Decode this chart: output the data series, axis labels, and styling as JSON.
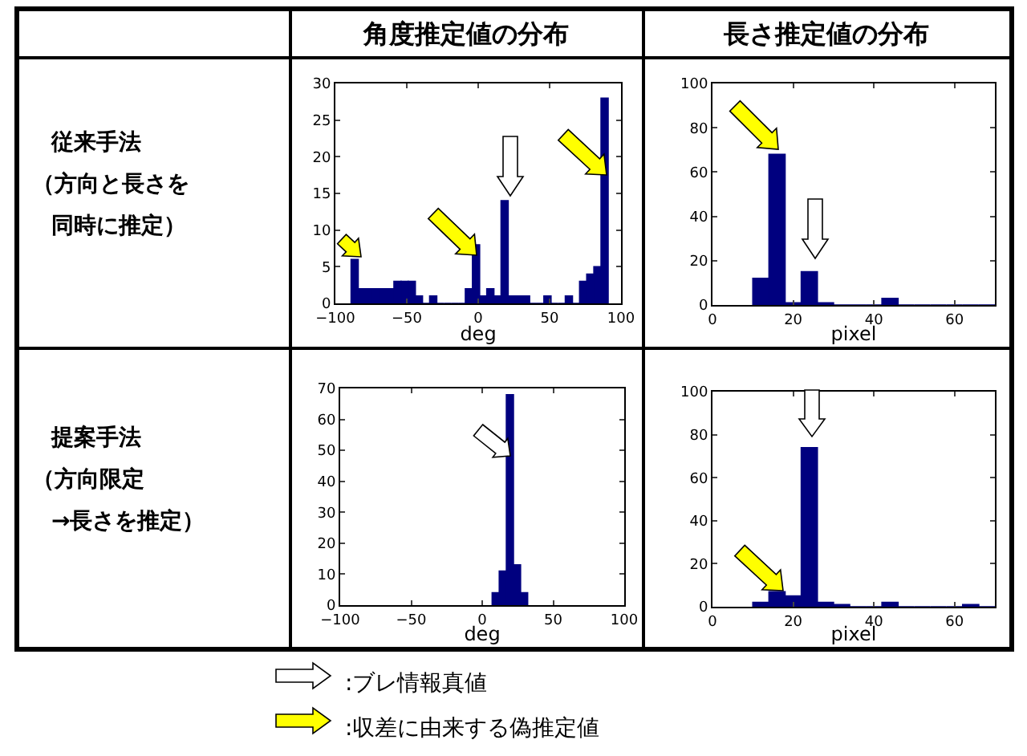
{
  "chart_data": [
    {
      "type": "histogram",
      "title": "角度推定値の分布",
      "xlabel": "deg",
      "color": "#00007f",
      "bins": [
        -89,
        -84,
        -79,
        -74,
        -69,
        -64,
        -59,
        -54,
        -49,
        -44,
        -39,
        -34,
        -29,
        -24,
        -19,
        -14,
        -9,
        -4,
        1,
        6,
        11,
        16,
        21,
        26,
        31,
        36,
        41,
        46,
        51,
        56,
        61,
        66,
        71,
        76,
        81,
        86,
        91
      ],
      "values": [
        6,
        2,
        2,
        2,
        2,
        2,
        3,
        3,
        3,
        1,
        0,
        1,
        0,
        0,
        0,
        0,
        2,
        8,
        1,
        2,
        1,
        14,
        1,
        1,
        1,
        0,
        0,
        1,
        0,
        0,
        1,
        0,
        3,
        4,
        5,
        28
      ],
      "xlim": [
        -100,
        100
      ],
      "xticks": [
        -100,
        -50,
        0,
        50,
        100
      ],
      "ylim": [
        0,
        30
      ],
      "yticks": [
        0,
        5,
        10,
        15,
        20,
        25,
        30
      ]
    },
    {
      "type": "histogram",
      "title": "長さ推定値の分布",
      "xlabel": "pixel",
      "color": "#00007f",
      "bins": [
        10,
        14,
        18,
        22,
        26,
        30,
        34,
        38,
        42,
        46,
        50,
        54,
        58,
        62,
        66,
        70
      ],
      "values": [
        12,
        68,
        1,
        15,
        1,
        0,
        0,
        0,
        3,
        0,
        0,
        0,
        0,
        0,
        0
      ],
      "xlim": [
        0,
        70
      ],
      "xticks": [
        0,
        20,
        40,
        60
      ],
      "ylim": [
        0,
        100
      ],
      "yticks": [
        0,
        20,
        40,
        60,
        80,
        100
      ]
    },
    {
      "type": "histogram",
      "xlabel": "deg",
      "color": "#00007f",
      "bins": [
        7,
        12,
        17,
        22,
        27,
        32
      ],
      "values": [
        4,
        11,
        68,
        13,
        4
      ],
      "xlim": [
        -100,
        100
      ],
      "xticks": [
        -100,
        -50,
        0,
        50,
        100
      ],
      "ylim": [
        0,
        70
      ],
      "yticks": [
        0,
        10,
        20,
        30,
        40,
        50,
        60,
        70
      ]
    },
    {
      "type": "histogram",
      "xlabel": "pixel",
      "color": "#00007f",
      "bins": [
        10,
        14,
        18,
        22,
        26,
        30,
        34,
        38,
        42,
        46,
        50,
        54,
        58,
        62,
        66,
        70
      ],
      "values": [
        2,
        7,
        5,
        74,
        2,
        1,
        0,
        0,
        2,
        0,
        0,
        0,
        0,
        1,
        0
      ],
      "xlim": [
        0,
        70
      ],
      "xticks": [
        0,
        20,
        40,
        60
      ],
      "ylim": [
        0,
        100
      ],
      "yticks": [
        0,
        20,
        40,
        60,
        80,
        100
      ]
    },
    {
      "type": "other",
      "annotations": [
        "従来手法",
        "（方向と長さを",
        "同時に推定）",
        "提案手法",
        "（方向限定",
        "→長さを推定）",
        ":ブレ情報真値",
        ":収差に由来する偽推定値"
      ]
    }
  ]
}
